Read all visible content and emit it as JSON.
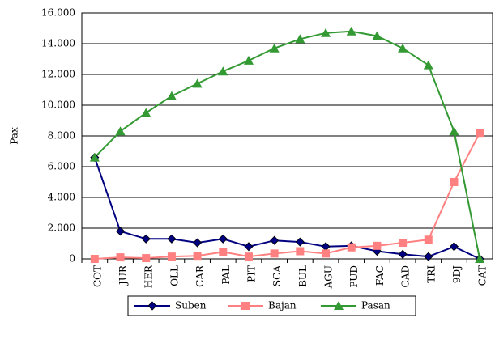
{
  "chart_data": {
    "type": "line",
    "y_label": "Pax",
    "categories": [
      "COT",
      "JUR",
      "HER",
      "OLL",
      "CAR",
      "PAL",
      "PIT",
      "SCA",
      "BUL",
      "AGU",
      "PUD",
      "FAC",
      "CAD",
      "TRI",
      "9DJ",
      "CAT"
    ],
    "series": [
      {
        "name": "Suben",
        "color": "#000080",
        "marker": "diamond",
        "values": [
          6600,
          1800,
          1300,
          1300,
          1050,
          1300,
          800,
          1200,
          1100,
          800,
          850,
          500,
          300,
          150,
          800,
          0
        ]
      },
      {
        "name": "Bajan",
        "color": "#ff8080",
        "marker": "square",
        "values": [
          0,
          100,
          50,
          150,
          200,
          450,
          150,
          350,
          500,
          350,
          750,
          850,
          1050,
          1250,
          5000,
          8200
        ]
      },
      {
        "name": "Pasan",
        "color": "#339933",
        "marker": "triangle",
        "values": [
          6600,
          8300,
          9500,
          10600,
          11400,
          12200,
          12900,
          13700,
          14300,
          14700,
          14800,
          14500,
          13700,
          12600,
          8300,
          0
        ]
      }
    ],
    "ylim": [
      0,
      16000
    ],
    "yticks": [
      0,
      {
        "value": 2000,
        "label": "2.000"
      },
      {
        "value": 4000,
        "label": "4.000"
      },
      {
        "value": 6000,
        "label": "6.000"
      },
      {
        "value": 8000,
        "label": "8.000"
      },
      {
        "value": 10000,
        "label": "10.000"
      },
      {
        "value": 12000,
        "label": "12.000"
      },
      {
        "value": 14000,
        "label": "14.000"
      },
      {
        "value": 16000,
        "label": "16.000"
      }
    ],
    "grid": true,
    "legend": "bottom"
  }
}
